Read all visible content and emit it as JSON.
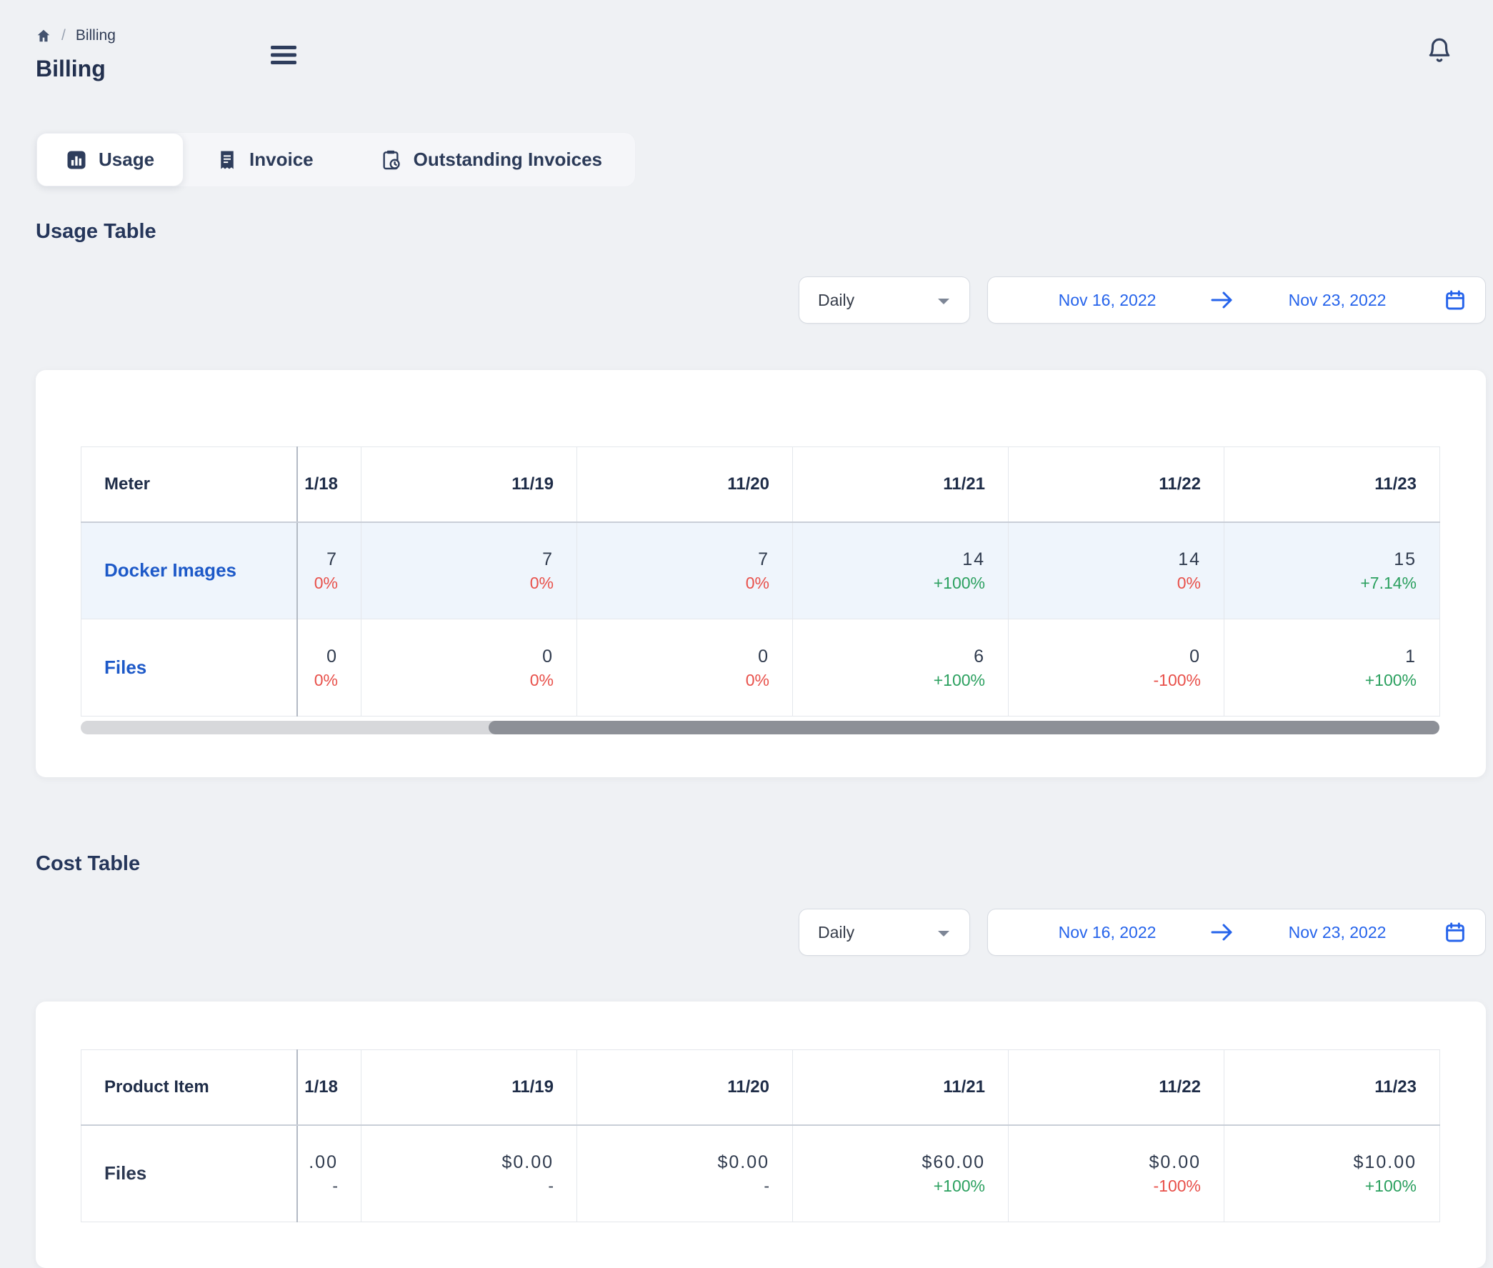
{
  "page": {
    "title": "Billing"
  },
  "breadcrumb": {
    "separator": "/",
    "current": "Billing"
  },
  "icons": {
    "breadcrumb_home": "home-icon",
    "menu": "menu-icon",
    "notifications": "bell-icon",
    "interval_chevron": "chevron-down-icon",
    "range_arrow": "arrow-right-icon",
    "calendar": "calendar-icon"
  },
  "tabs": [
    {
      "label": "Usage",
      "icon": "bar-chart-icon",
      "active": true
    },
    {
      "label": "Invoice",
      "icon": "receipt-icon",
      "active": false
    },
    {
      "label": "Outstanding Invoices",
      "icon": "clipboard-clock-icon",
      "active": false
    }
  ],
  "usage_section": {
    "heading": "Usage Table",
    "interval": "Daily",
    "date_from": "Nov 16, 2022",
    "date_to": "Nov 23, 2022",
    "table": {
      "name_header": "Meter",
      "date_columns": [
        "1/18",
        "11/19",
        "11/20",
        "11/21",
        "11/22",
        "11/23"
      ],
      "rows": [
        {
          "name": "Docker Images",
          "name_is_link": true,
          "highlighted": true,
          "cells": [
            {
              "value": "7",
              "delta": "0%",
              "trend": "down"
            },
            {
              "value": "7",
              "delta": "0%",
              "trend": "down"
            },
            {
              "value": "7",
              "delta": "0%",
              "trend": "down"
            },
            {
              "value": "14",
              "delta": "+100%",
              "trend": "up"
            },
            {
              "value": "14",
              "delta": "0%",
              "trend": "down"
            },
            {
              "value": "15",
              "delta": "+7.14%",
              "trend": "up"
            }
          ]
        },
        {
          "name": "Files",
          "name_is_link": true,
          "highlighted": false,
          "cells": [
            {
              "value": "0",
              "delta": "0%",
              "trend": "down"
            },
            {
              "value": "0",
              "delta": "0%",
              "trend": "down"
            },
            {
              "value": "0",
              "delta": "0%",
              "trend": "down"
            },
            {
              "value": "6",
              "delta": "+100%",
              "trend": "up"
            },
            {
              "value": "0",
              "delta": "-100%",
              "trend": "down"
            },
            {
              "value": "1",
              "delta": "+100%",
              "trend": "up"
            }
          ]
        }
      ]
    }
  },
  "cost_section": {
    "heading": "Cost Table",
    "interval": "Daily",
    "date_from": "Nov 16, 2022",
    "date_to": "Nov 23, 2022",
    "table": {
      "name_header": "Product Item",
      "date_columns": [
        "1/18",
        "11/19",
        "11/20",
        "11/21",
        "11/22",
        "11/23"
      ],
      "rows": [
        {
          "name": "Files",
          "name_is_link": false,
          "highlighted": false,
          "cells": [
            {
              "value": ".00",
              "delta": "-",
              "trend": "neutral"
            },
            {
              "value": "$0.00",
              "delta": "-",
              "trend": "neutral"
            },
            {
              "value": "$0.00",
              "delta": "-",
              "trend": "neutral"
            },
            {
              "value": "$60.00",
              "delta": "+100%",
              "trend": "up"
            },
            {
              "value": "$0.00",
              "delta": "-100%",
              "trend": "down"
            },
            {
              "value": "$10.00",
              "delta": "+100%",
              "trend": "up"
            }
          ]
        }
      ]
    }
  },
  "colors": {
    "page_background": "#eff1f4",
    "card_background": "#ffffff",
    "heading_navy": "#24355a",
    "link_blue": "#1d59c8",
    "accent_blue": "#2563eb",
    "positive_green": "#2ba05f",
    "negative_red": "#e8504a",
    "row_highlight": "#eff5fc"
  }
}
